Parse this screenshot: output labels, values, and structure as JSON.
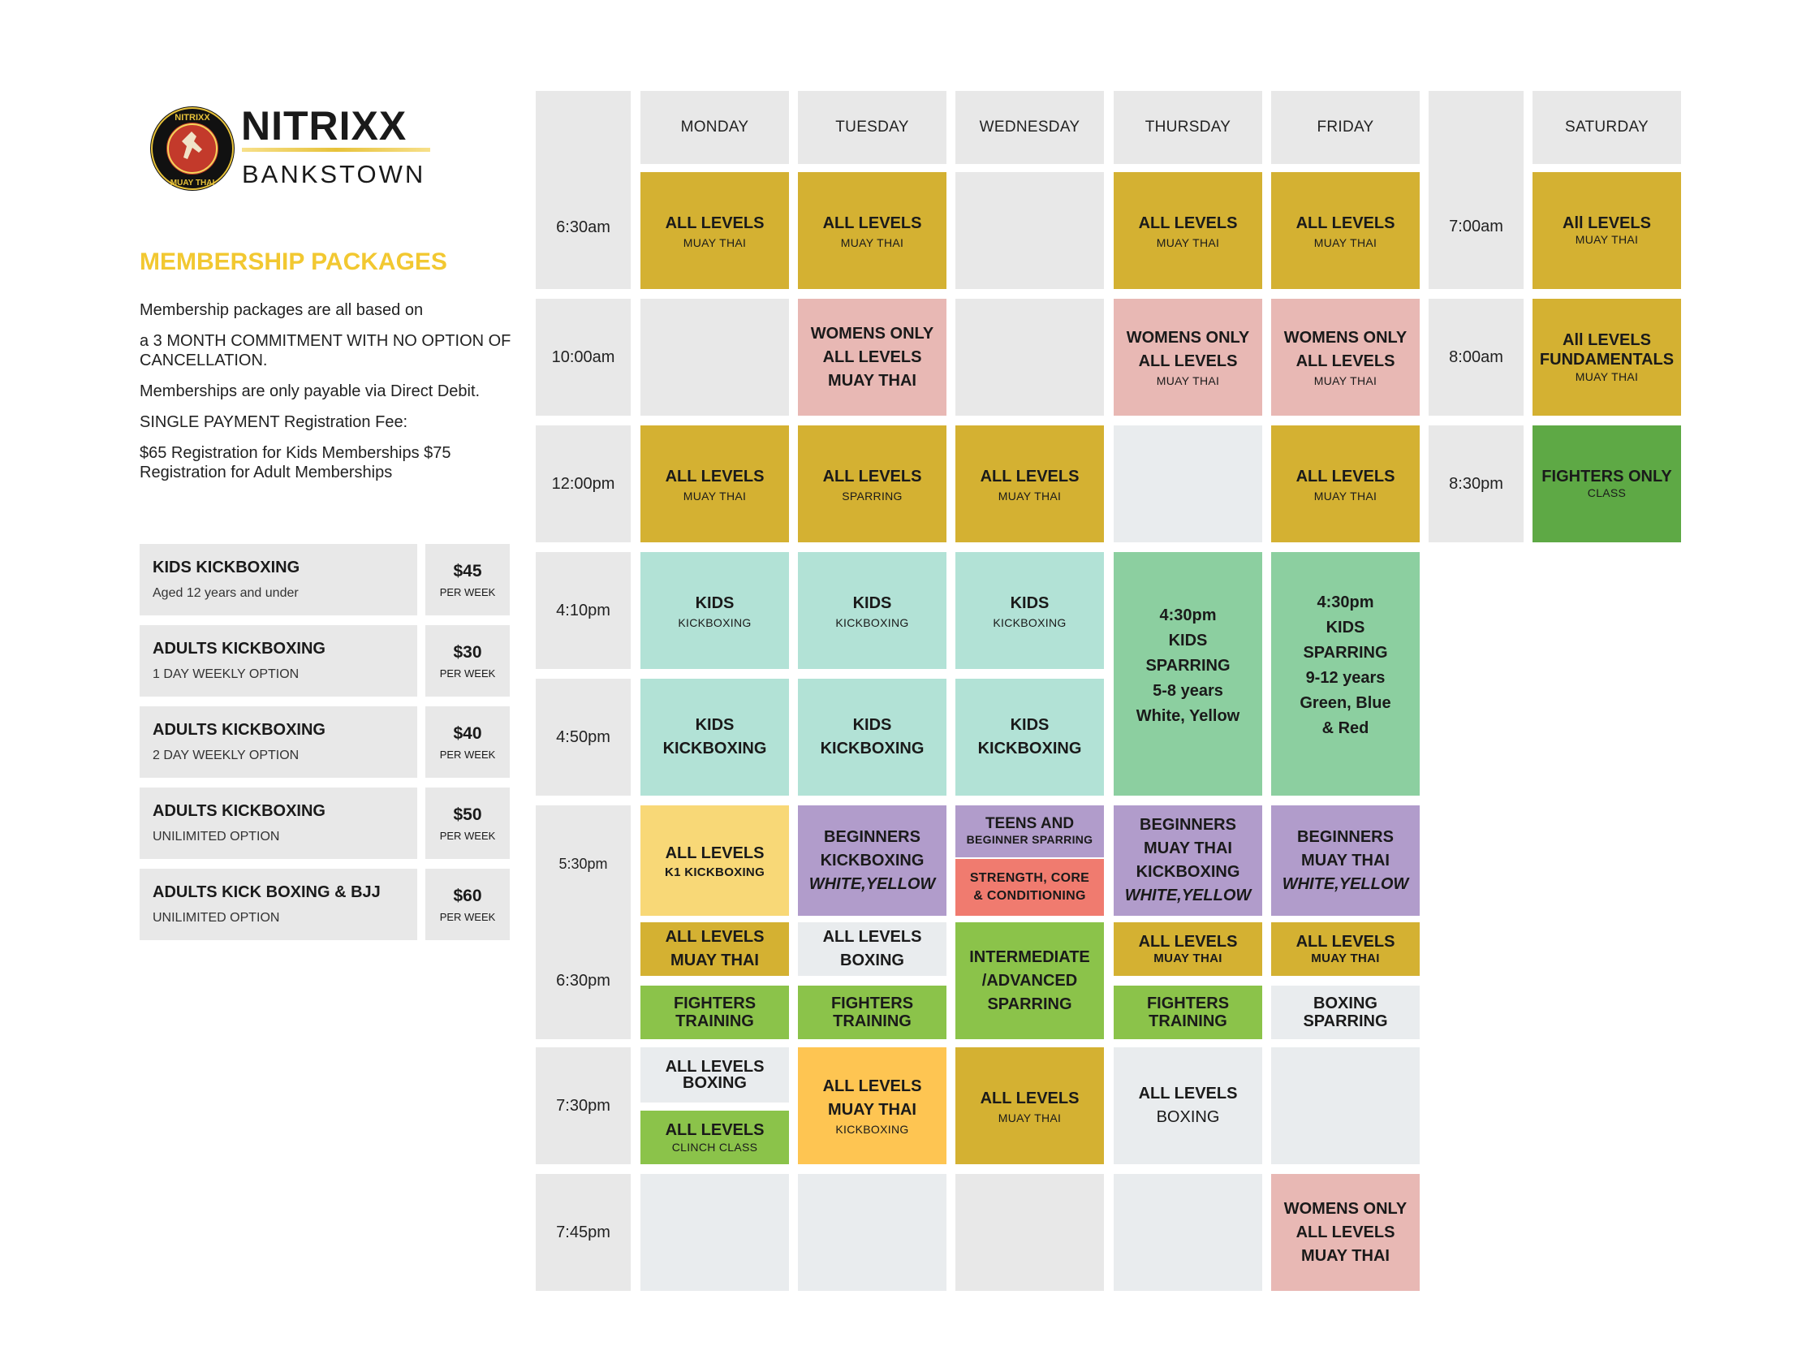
{
  "brand": {
    "name": "NITRIXX",
    "location": "BANKSTOWN",
    "logo_ring_top": "NITRIXX",
    "logo_ring_bottom": "MUAY THAI"
  },
  "membership": {
    "heading": "MEMBERSHIP PACKAGES",
    "paragraphs": [
      "Membership packages are all based on",
      "a 3 MONTH COMMITMENT WITH NO OPTION OF CANCELLATION.",
      "Memberships are only payable via Direct Debit.",
      "SINGLE PAYMENT Registration Fee:",
      "$65 Registration for Kids Memberships $75 Registration for Adult Memberships"
    ],
    "packages": [
      {
        "name": "KIDS KICKBOXING",
        "sub": "Aged 12 years and under",
        "price": "$45",
        "unit": "PER WEEK"
      },
      {
        "name": "ADULTS KICKBOXING",
        "sub": "1 DAY WEEKLY OPTION",
        "price": "$30",
        "unit": "PER WEEK"
      },
      {
        "name": "ADULTS KICKBOXING",
        "sub": "2 DAY WEEKLY OPTION",
        "price": "$40",
        "unit": "PER WEEK"
      },
      {
        "name": "ADULTS KICKBOXING",
        "sub": "UNILIMITED OPTION",
        "price": "$50",
        "unit": "PER WEEK"
      },
      {
        "name": "ADULTS KICK BOXING & BJJ",
        "sub": "UNILIMITED OPTION",
        "price": "$60",
        "unit": "PER WEEK"
      }
    ]
  },
  "schedule": {
    "days": [
      "MONDAY",
      "TUESDAY",
      "WEDNESDAY",
      "THURSDAY",
      "FRIDAY",
      "SATURDAY"
    ],
    "times": [
      "6:30am",
      "10:00am",
      "12:00pm",
      "4:10pm",
      "4:50pm",
      "5:30pm",
      "6:30pm",
      "7:30pm",
      "7:45pm"
    ],
    "saturday_times": [
      "7:00am",
      "8:00am",
      "8:30pm"
    ],
    "classes": {
      "mon_630": {
        "title": "ALL LEVELS",
        "sub": "MUAY THAI"
      },
      "tue_630": {
        "title": "ALL LEVELS",
        "sub": "MUAY THAI"
      },
      "thu_630": {
        "title": "ALL LEVELS",
        "sub": "MUAY THAI"
      },
      "fri_630": {
        "title": "ALL LEVELS",
        "sub": "MUAY THAI"
      },
      "tue_1000": {
        "l1": "WOMENS ONLY",
        "l2": "ALL LEVELS",
        "l3": "MUAY THAI"
      },
      "thu_1000": {
        "l1": "WOMENS ONLY",
        "l2": "ALL LEVELS",
        "sub": "MUAY THAI"
      },
      "fri_1000": {
        "l1": "WOMENS ONLY",
        "l2": "ALL LEVELS",
        "sub": "MUAY THAI"
      },
      "mon_1200": {
        "title": "ALL LEVELS",
        "sub": "MUAY THAI"
      },
      "tue_1200": {
        "title": "ALL LEVELS",
        "sub": "SPARRING"
      },
      "wed_1200": {
        "title": "ALL LEVELS",
        "sub": "MUAY THAI"
      },
      "fri_1200": {
        "title": "ALL LEVELS",
        "sub": "MUAY THAI"
      },
      "mon_410": {
        "title": "KIDS",
        "sub": "KICKBOXING"
      },
      "tue_410": {
        "title": "KIDS",
        "sub": "KICKBOXING"
      },
      "wed_410": {
        "title": "KIDS",
        "sub": "KICKBOXING"
      },
      "thu_kids": {
        "l1": "4:30pm",
        "l2": "KIDS",
        "l3": "SPARRING",
        "l4": "5-8 years",
        "l5": "White, Yellow"
      },
      "fri_kids": {
        "l1": "4:30pm",
        "l2": "KIDS",
        "l3": "SPARRING",
        "l4": "9-12 years",
        "l5": "Green, Blue",
        "l6": "& Red"
      },
      "mon_450": {
        "l1": "KIDS",
        "l2": "KICKBOXING"
      },
      "tue_450": {
        "l1": "KIDS",
        "l2": "KICKBOXING"
      },
      "wed_450": {
        "l1": "KIDS",
        "l2": "KICKBOXING"
      },
      "mon_530": {
        "title": "ALL LEVELS",
        "sub": "K1 KICKBOXING"
      },
      "tue_530": {
        "l1": "BEGINNERS",
        "l2": "KICKBOXING",
        "l3": "WHITE,YELLOW"
      },
      "wed_530a": {
        "l1": "TEENS AND",
        "l2": "BEGINNER SPARRING"
      },
      "wed_530b": {
        "l1": "STRENGTH, CORE",
        "l2": "& CONDITIONING"
      },
      "thu_530": {
        "l1": "BEGINNERS",
        "l2": "MUAY THAI",
        "l3": "KICKBOXING",
        "l4": "WHITE,YELLOW"
      },
      "fri_530": {
        "l1": "BEGINNERS",
        "l2": "MUAY THAI",
        "l3": "WHITE,YELLOW"
      },
      "mon_630pa": {
        "l1": "ALL LEVELS",
        "l2": "MUAY THAI"
      },
      "mon_630pb": {
        "l1": "FIGHTERS",
        "l2": "TRAINING"
      },
      "tue_630pa": {
        "l1": "ALL LEVELS",
        "l2": "BOXING"
      },
      "tue_630pb": {
        "l1": "FIGHTERS",
        "l2": "TRAINING"
      },
      "wed_630p": {
        "l1": "INTERMEDIATE",
        "l2": "/ADVANCED",
        "l3": "SPARRING"
      },
      "thu_630pa": {
        "l1": "ALL LEVELS",
        "sub": "MUAY THAI"
      },
      "thu_630pb": {
        "l1": "FIGHTERS",
        "l2": "TRAINING"
      },
      "fri_630pa": {
        "l1": "ALL LEVELS",
        "sub": "MUAY THAI"
      },
      "fri_630pb": {
        "l1": "BOXING",
        "l2": "SPARRING"
      },
      "mon_730a": {
        "l1": "ALL LEVELS",
        "l2": "BOXING"
      },
      "mon_730b": {
        "l1": "ALL LEVELS",
        "sub": "CLINCH CLASS"
      },
      "tue_730": {
        "l1": "ALL LEVELS",
        "l2": "MUAY THAI",
        "sub": "KICKBOXING"
      },
      "wed_730": {
        "title": "ALL LEVELS",
        "sub": "MUAY THAI"
      },
      "thu_730": {
        "l1": "ALL LEVELS",
        "l2": "BOXING"
      },
      "fri_745": {
        "l1": "WOMENS ONLY",
        "l2": "ALL LEVELS",
        "l3": "MUAY THAI"
      },
      "sat_700": {
        "title": "All LEVELS",
        "sub": "MUAY THAI"
      },
      "sat_800": {
        "l1": "All LEVELS",
        "l2": "FUNDAMENTALS",
        "sub": "MUAY THAI"
      },
      "sat_830": {
        "title": "FIGHTERS ONLY",
        "sub": "CLASS"
      }
    }
  },
  "colors": {
    "gold": "#d4b132",
    "pink": "#e8b8b4",
    "teal": "#b2e2d6",
    "green": "#8ccfa0",
    "yellow": "#f8d877",
    "purple": "#b19ccb",
    "lime": "#8bc34a",
    "red": "#f07b6f",
    "orange": "#fec552",
    "dark_green": "#5ea945",
    "heading_yellow": "#f2c831"
  }
}
